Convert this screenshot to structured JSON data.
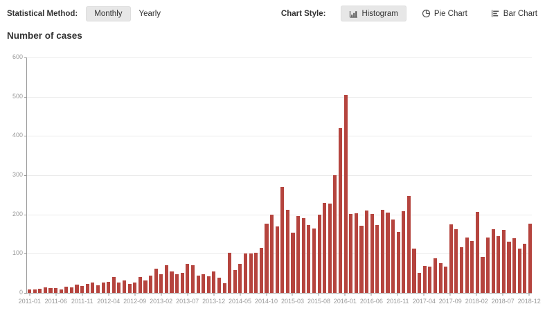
{
  "toolbar": {
    "left_label": "Statistical Method:",
    "monthly": "Monthly",
    "yearly": "Yearly",
    "selected_method": "Monthly",
    "right_label": "Chart Style:",
    "histogram": "Histogram",
    "pie": "Pie Chart",
    "bar": "Bar Chart",
    "selected_style": "Histogram"
  },
  "heading": "Number of cases",
  "colors": {
    "bar": "#b5443e",
    "selected_button_bg": "#e7e7e7",
    "axis_label": "#999999",
    "gridline": "#ebebeb",
    "text": "#333333"
  },
  "chart_data": {
    "type": "bar",
    "title": "Number of cases",
    "xlabel": "",
    "ylabel": "",
    "ylim": [
      0,
      600
    ],
    "y_ticks": [
      0,
      100,
      200,
      300,
      400,
      500,
      600
    ],
    "grid": true,
    "legend": false,
    "x_tick_labels": [
      "2011-01",
      "2011-06",
      "2011-11",
      "2012-04",
      "2012-09",
      "2013-02",
      "2013-07",
      "2013-12",
      "2014-05",
      "2014-10",
      "2015-03",
      "2015-08",
      "2016-01",
      "2016-06",
      "2016-11",
      "2017-04",
      "2017-09",
      "2018-02",
      "2018-07",
      "2018-12"
    ],
    "x_tick_interval": 5,
    "x": [
      "2011-01",
      "2011-02",
      "2011-03",
      "2011-04",
      "2011-05",
      "2011-06",
      "2011-07",
      "2011-08",
      "2011-09",
      "2011-10",
      "2011-11",
      "2011-12",
      "2012-01",
      "2012-02",
      "2012-03",
      "2012-04",
      "2012-05",
      "2012-06",
      "2012-07",
      "2012-08",
      "2012-09",
      "2012-10",
      "2012-11",
      "2012-12",
      "2013-01",
      "2013-02",
      "2013-03",
      "2013-04",
      "2013-05",
      "2013-06",
      "2013-07",
      "2013-08",
      "2013-09",
      "2013-10",
      "2013-11",
      "2013-12",
      "2014-01",
      "2014-02",
      "2014-03",
      "2014-04",
      "2014-05",
      "2014-06",
      "2014-07",
      "2014-08",
      "2014-09",
      "2014-10",
      "2014-11",
      "2014-12",
      "2015-01",
      "2015-02",
      "2015-03",
      "2015-04",
      "2015-05",
      "2015-06",
      "2015-07",
      "2015-08",
      "2015-09",
      "2015-10",
      "2015-11",
      "2015-12",
      "2016-01",
      "2016-02",
      "2016-03",
      "2016-04",
      "2016-05",
      "2016-06",
      "2016-07",
      "2016-08",
      "2016-09",
      "2016-10",
      "2016-11",
      "2016-12",
      "2017-01",
      "2017-02",
      "2017-03",
      "2017-04",
      "2017-05",
      "2017-06",
      "2017-07",
      "2017-08",
      "2017-09",
      "2017-10",
      "2017-11",
      "2017-12",
      "2018-01",
      "2018-02",
      "2018-03",
      "2018-04",
      "2018-05",
      "2018-06",
      "2018-07",
      "2018-08",
      "2018-09",
      "2018-10",
      "2018-11",
      "2018-12"
    ],
    "values": [
      8,
      9,
      11,
      15,
      13,
      12,
      9,
      16,
      14,
      21,
      17,
      23,
      27,
      19,
      26,
      29,
      41,
      26,
      32,
      23,
      27,
      41,
      32,
      45,
      62,
      48,
      70,
      55,
      47,
      52,
      75,
      70,
      45,
      48,
      42,
      55,
      38,
      25,
      103,
      58,
      74,
      100,
      101,
      103,
      115,
      176,
      200,
      170,
      270,
      212,
      153,
      196,
      190,
      173,
      165,
      200,
      230,
      228,
      300,
      420,
      505,
      202,
      203,
      172,
      210,
      201,
      173,
      212,
      205,
      187,
      156,
      209,
      247,
      113,
      52,
      68,
      67,
      89,
      76,
      67,
      175,
      163,
      117,
      141,
      132,
      207,
      91,
      142,
      162,
      145,
      160,
      130,
      139,
      113,
      126,
      177
    ]
  }
}
